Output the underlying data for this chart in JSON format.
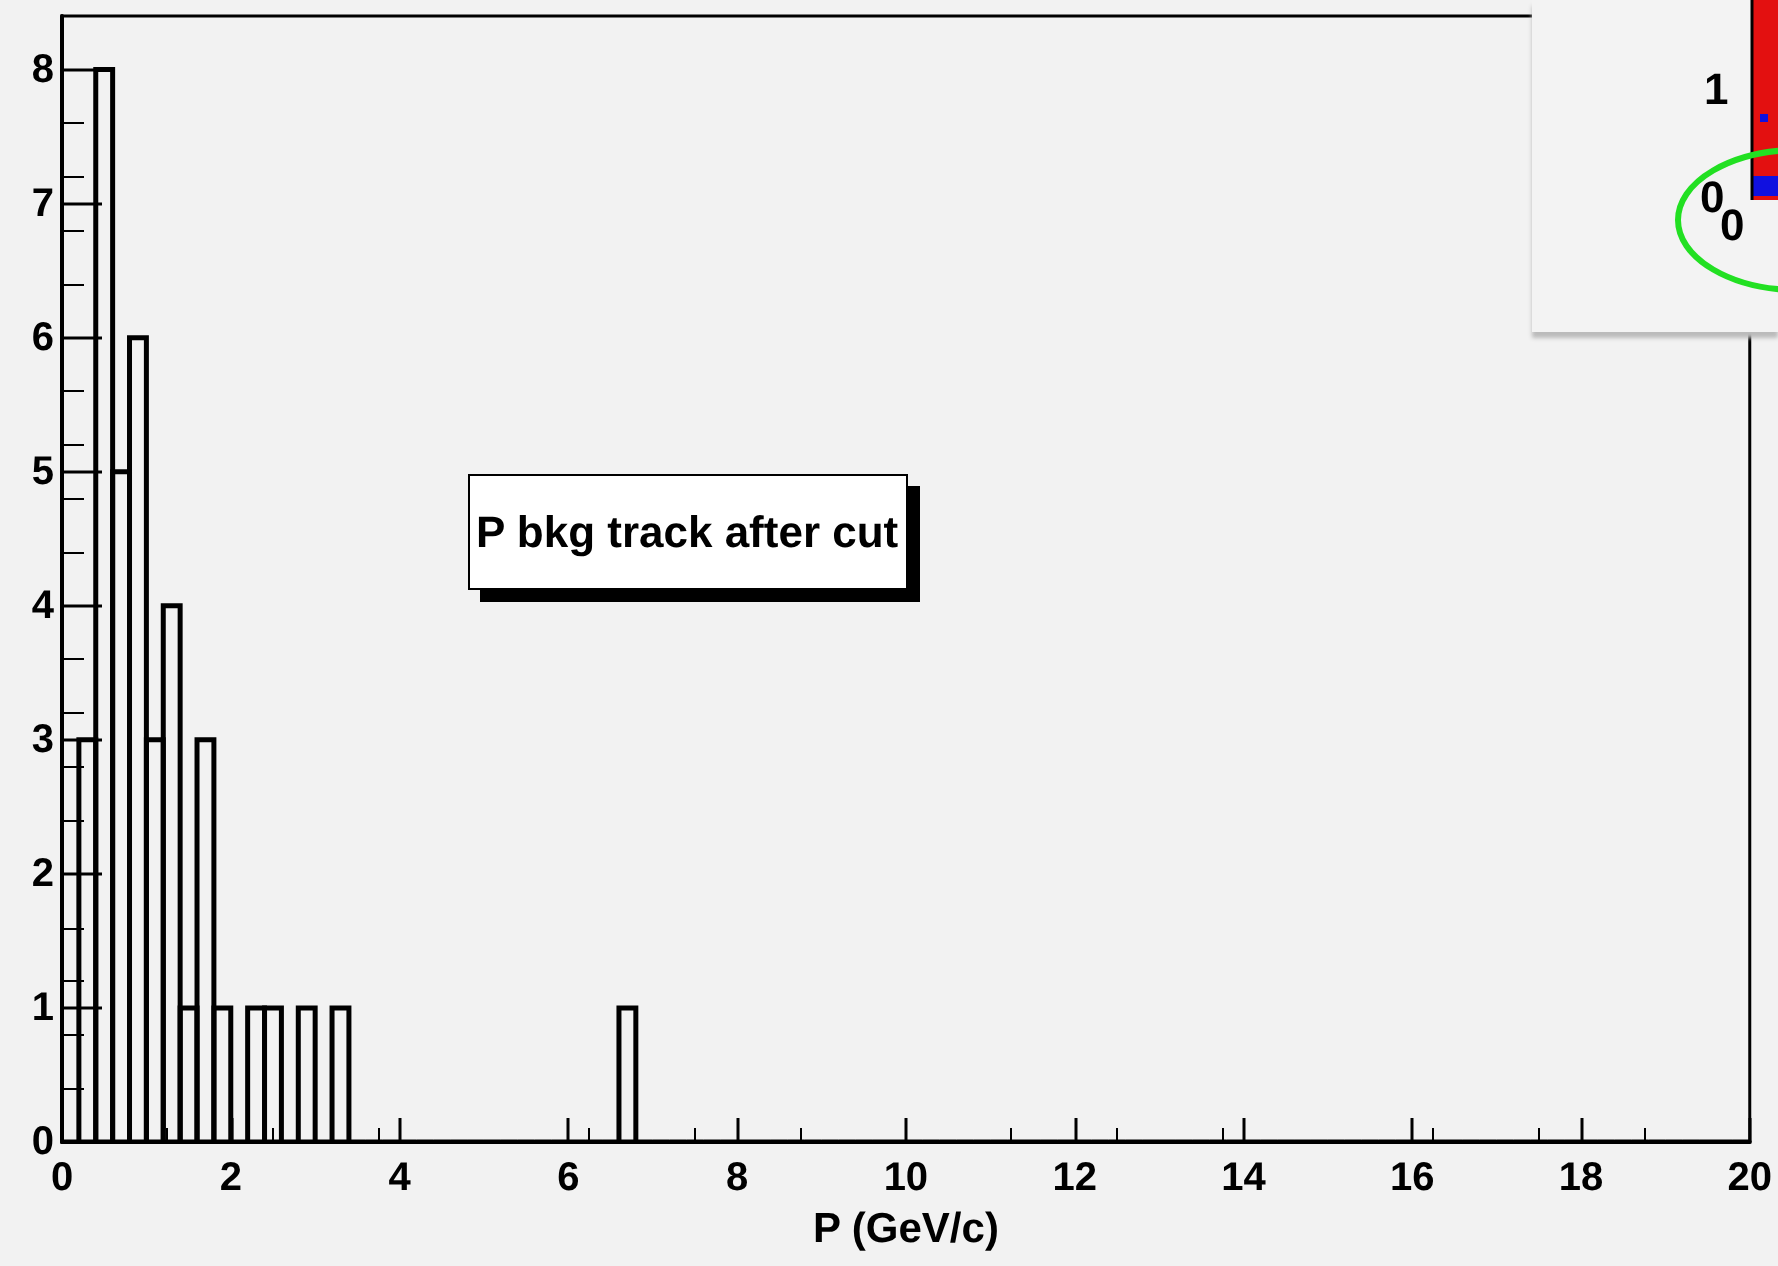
{
  "chart_data": [
    {
      "type": "histogram",
      "title": "P bkg track after cut",
      "xlabel": "P (GeV/c)",
      "bins": [
        0,
        0.2,
        0.4,
        0.6,
        0.8,
        1,
        1.2,
        1.4,
        1.6,
        1.8,
        2,
        2.2,
        2.4,
        2.6,
        2.8,
        3,
        3.2,
        3.4,
        3.6,
        3.8,
        4,
        4.2,
        4.4,
        4.6,
        4.8,
        5,
        5.2,
        5.4,
        5.6,
        5.8,
        6,
        6.2,
        6.4,
        6.6,
        6.8,
        7,
        7.2,
        7.4,
        7.6,
        7.8,
        8,
        8.2,
        8.4,
        8.6,
        8.8,
        9,
        9.2,
        9.4,
        9.6,
        9.8,
        10,
        10.2,
        10.4,
        10.6,
        10.8,
        11,
        11.2,
        11.4,
        11.6,
        11.8,
        12,
        12.2,
        12.4,
        12.6,
        12.8,
        13,
        13.2,
        13.4,
        13.6,
        13.8,
        14,
        14.2,
        14.4,
        14.6,
        14.8,
        15,
        15.2,
        15.4,
        15.6,
        15.8,
        16,
        16.2,
        16.4,
        16.6,
        16.8,
        17,
        17.2,
        17.4,
        17.6,
        17.8,
        18,
        18.2,
        18.4,
        18.6,
        18.8,
        19,
        19.2,
        19.4,
        19.6,
        19.8,
        20
      ],
      "values": [
        0,
        3,
        8,
        5,
        6,
        3,
        4,
        1,
        3,
        1,
        0,
        1,
        1,
        0,
        1,
        0,
        1,
        0,
        0,
        0,
        0,
        0,
        0,
        0,
        0,
        0,
        0,
        0,
        0,
        0,
        0,
        0,
        0,
        1,
        0,
        0,
        0,
        0,
        0,
        0,
        0,
        0,
        0,
        0,
        0,
        0,
        0,
        0,
        0,
        0,
        0,
        0,
        0,
        0,
        0,
        0,
        0,
        0,
        0,
        0,
        0,
        0,
        0,
        0,
        0,
        0,
        0,
        0,
        0,
        0,
        0,
        0,
        0,
        0,
        0,
        0,
        0,
        0,
        0,
        0,
        0,
        0,
        0,
        0,
        0,
        0,
        0,
        0,
        0,
        0,
        0,
        0,
        0,
        0,
        0,
        0,
        0,
        0,
        0,
        0
      ],
      "color": "#000000",
      "xlim": [
        0,
        20
      ],
      "xticks": [
        0,
        2,
        4,
        6,
        8,
        10,
        12,
        14,
        16,
        18,
        20
      ],
      "ylim": [
        0,
        8.4
      ],
      "yticks": [
        0,
        1,
        2,
        3,
        4,
        5,
        6,
        7,
        8
      ]
    },
    {
      "type": "other",
      "annotations": [
        "1",
        "0",
        "0"
      ]
    }
  ]
}
